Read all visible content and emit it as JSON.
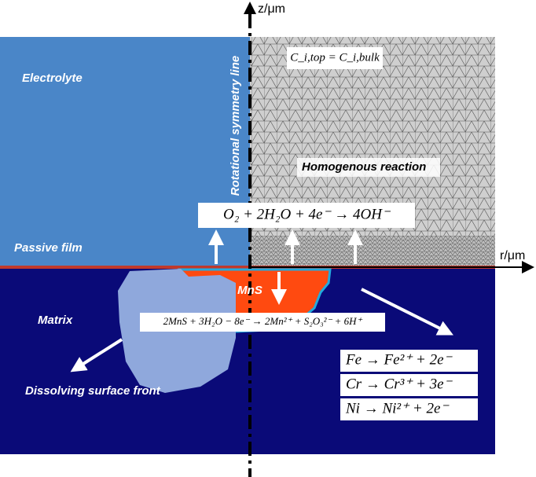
{
  "axes": {
    "z_label": "z/μm",
    "r_label": "r/μm"
  },
  "regions": {
    "electrolyte": "Electrolyte",
    "passive_film": "Passive film",
    "matrix": "Matrix",
    "inclusion": "MnS",
    "dissolving_front": "Dissolving surface front",
    "symmetry_line": "Rotational symmetry line",
    "homogeneous": "Homogenous reaction"
  },
  "equations": {
    "boundary": "C_i,top = C_i,bulk",
    "oxygen": "O₂ + 2H₂O + 4e⁻ → 4OH⁻",
    "mns": "2MnS + 3H₂O − 8e⁻ → 2Mn²⁺ + S₂O₃²⁻ + 6H⁺",
    "metals": [
      "Fe → Fe²⁺ + 2e⁻",
      "Cr → Cr³⁺ + 3e⁻",
      "Ni → Ni²⁺ + 2e⁻"
    ]
  }
}
